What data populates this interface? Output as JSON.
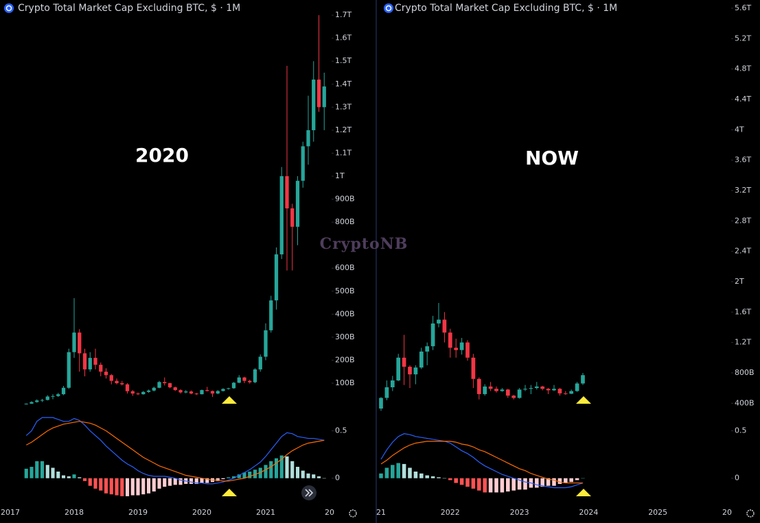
{
  "watermark": "CryptoNB",
  "chart_data": [
    {
      "type": "candlestick",
      "title": "Crypto Total Market Cap Excluding BTC, $ · 1M",
      "annotation": "2020",
      "up_color": "#26a69a",
      "down_color": "#f23645",
      "categories": [
        "2017",
        null,
        null,
        null,
        null,
        null,
        null,
        null,
        null,
        null,
        null,
        null,
        "2018",
        null,
        null,
        null,
        null,
        null,
        null,
        null,
        null,
        null,
        null,
        null,
        "2019",
        null,
        null,
        null,
        null,
        null,
        null,
        null,
        null,
        null,
        null,
        null,
        "2020",
        null,
        null,
        null,
        null,
        null,
        null,
        null,
        null,
        null,
        null,
        null,
        "2021",
        null,
        null,
        null,
        null,
        null,
        null,
        null,
        null,
        null,
        null,
        null,
        "20"
      ],
      "ohlc": [
        null,
        null,
        null,
        [
          8,
          12,
          7,
          11
        ],
        [
          11,
          22,
          10,
          18
        ],
        [
          18,
          30,
          15,
          25
        ],
        [
          25,
          32,
          18,
          27
        ],
        [
          27,
          48,
          25,
          42
        ],
        [
          42,
          52,
          30,
          44
        ],
        [
          44,
          58,
          40,
          52
        ],
        [
          52,
          88,
          48,
          80
        ],
        [
          80,
          250,
          75,
          235
        ],
        [
          235,
          470,
          210,
          320
        ],
        [
          320,
          335,
          150,
          230
        ],
        [
          230,
          250,
          130,
          160
        ],
        [
          160,
          235,
          150,
          210
        ],
        [
          210,
          250,
          160,
          180
        ],
        [
          180,
          190,
          130,
          150
        ],
        [
          150,
          165,
          120,
          135
        ],
        [
          135,
          140,
          95,
          110
        ],
        [
          110,
          120,
          95,
          100
        ],
        [
          100,
          110,
          90,
          95
        ],
        [
          95,
          100,
          55,
          65
        ],
        [
          65,
          70,
          45,
          55
        ],
        [
          55,
          60,
          48,
          52
        ],
        [
          52,
          66,
          50,
          62
        ],
        [
          62,
          72,
          58,
          68
        ],
        [
          68,
          85,
          64,
          80
        ],
        [
          80,
          110,
          78,
          105
        ],
        [
          105,
          125,
          90,
          100
        ],
        [
          100,
          102,
          78,
          82
        ],
        [
          82,
          85,
          66,
          70
        ],
        [
          70,
          74,
          55,
          60
        ],
        [
          60,
          70,
          56,
          64
        ],
        [
          64,
          68,
          52,
          55
        ],
        [
          55,
          58,
          48,
          52
        ],
        [
          52,
          72,
          51,
          70
        ],
        [
          70,
          84,
          64,
          66
        ],
        [
          66,
          68,
          40,
          55
        ],
        [
          55,
          70,
          52,
          66
        ],
        [
          66,
          78,
          64,
          75
        ],
        [
          75,
          80,
          72,
          78
        ],
        [
          78,
          105,
          76,
          102
        ],
        [
          102,
          135,
          100,
          125
        ],
        [
          125,
          128,
          100,
          110
        ],
        [
          110,
          115,
          98,
          104
        ],
        [
          104,
          165,
          100,
          160
        ],
        [
          160,
          225,
          150,
          215
        ],
        [
          215,
          360,
          200,
          330
        ],
        [
          330,
          480,
          320,
          460
        ],
        [
          460,
          690,
          420,
          660
        ],
        [
          660,
          1040,
          640,
          1000
        ],
        [
          1000,
          1480,
          590,
          860
        ],
        [
          860,
          880,
          590,
          780
        ],
        [
          780,
          1000,
          700,
          980
        ],
        [
          980,
          1150,
          950,
          1130
        ],
        [
          1130,
          1350,
          1050,
          1200
        ],
        [
          1200,
          1500,
          1150,
          1420
        ],
        [
          1420,
          1700,
          1280,
          1300
        ],
        [
          1300,
          1450,
          1200,
          1390
        ],
        null
      ],
      "ylim": [
        -40,
        1760
      ],
      "yticks": [
        {
          "value": 100,
          "label": "100B"
        },
        {
          "value": 200,
          "label": "200B"
        },
        {
          "value": 300,
          "label": "300B"
        },
        {
          "value": 400,
          "label": "400B"
        },
        {
          "value": 500,
          "label": "500B"
        },
        {
          "value": 600,
          "label": "600B"
        },
        {
          "value": 800,
          "label": "800B"
        },
        {
          "value": 900,
          "label": "900B"
        },
        {
          "value": 1000,
          "label": "1T"
        },
        {
          "value": 1100,
          "label": "1.1T"
        },
        {
          "value": 1200,
          "label": "1.2T"
        },
        {
          "value": 1300,
          "label": "1.3T"
        },
        {
          "value": 1400,
          "label": "1.4T"
        },
        {
          "value": 1500,
          "label": "1.5T"
        },
        {
          "value": 1600,
          "label": "1.6T"
        },
        {
          "value": 1700,
          "label": "1.7T"
        }
      ],
      "macd": {
        "ylim": [
          -0.27,
          0.67
        ],
        "yticks": [
          0,
          0.5
        ],
        "macd_color": "#2962ff",
        "signal_color": "#ff6d00",
        "histogram_colors": [
          "#26a69a",
          "#b2dfdb",
          "#ff5252",
          "#ffcdd2"
        ],
        "macd_line": [
          null,
          null,
          null,
          0.45,
          0.5,
          0.6,
          0.64,
          0.64,
          0.64,
          0.62,
          0.6,
          0.6,
          0.63,
          0.61,
          0.56,
          0.5,
          0.45,
          0.4,
          0.34,
          0.29,
          0.24,
          0.19,
          0.15,
          0.12,
          0.08,
          0.05,
          0.03,
          0.02,
          0.02,
          0.02,
          0.01,
          0,
          -0.02,
          -0.03,
          -0.04,
          -0.05,
          -0.05,
          -0.06,
          -0.06,
          -0.05,
          -0.04,
          -0.02,
          0,
          0.03,
          0.06,
          0.09,
          0.13,
          0.17,
          0.23,
          0.3,
          0.37,
          0.44,
          0.48,
          0.47,
          0.44,
          0.43,
          0.42,
          0.42,
          0.41,
          0.4,
          null
        ],
        "signal_line": [
          null,
          null,
          null,
          0.35,
          0.38,
          0.42,
          0.46,
          0.5,
          0.53,
          0.55,
          0.57,
          0.58,
          0.59,
          0.6,
          0.59,
          0.58,
          0.56,
          0.53,
          0.5,
          0.46,
          0.42,
          0.38,
          0.34,
          0.3,
          0.26,
          0.22,
          0.19,
          0.16,
          0.13,
          0.11,
          0.09,
          0.07,
          0.05,
          0.03,
          0.02,
          0.01,
          0,
          -0.01,
          -0.02,
          -0.02,
          -0.03,
          -0.03,
          -0.02,
          -0.01,
          0,
          0.02,
          0.04,
          0.06,
          0.09,
          0.12,
          0.16,
          0.2,
          0.25,
          0.29,
          0.32,
          0.35,
          0.37,
          0.38,
          0.39,
          0.4,
          null
        ],
        "histogram": [
          null,
          null,
          null,
          0.1,
          0.12,
          0.18,
          0.18,
          0.14,
          0.11,
          0.07,
          0.03,
          0.02,
          0.04,
          0.01,
          -0.03,
          -0.08,
          -0.11,
          -0.13,
          -0.16,
          -0.17,
          -0.18,
          -0.19,
          -0.19,
          -0.18,
          -0.18,
          -0.17,
          -0.16,
          -0.14,
          -0.11,
          -0.09,
          -0.08,
          -0.07,
          -0.07,
          -0.06,
          -0.06,
          -0.06,
          -0.05,
          -0.05,
          -0.04,
          -0.03,
          -0.01,
          0.01,
          0.02,
          0.04,
          0.06,
          0.07,
          0.09,
          0.11,
          0.14,
          0.18,
          0.21,
          0.24,
          0.23,
          0.18,
          0.12,
          0.08,
          0.05,
          0.04,
          0.02,
          0,
          null
        ]
      }
    },
    {
      "type": "candlestick",
      "title": "Crypto Total Market Cap Excluding BTC, $ · 1M",
      "annotation": "NOW",
      "up_color": "#26a69a",
      "down_color": "#f23645",
      "categories": [
        "21",
        null,
        null,
        null,
        null,
        null,
        null,
        null,
        null,
        null,
        null,
        null,
        "2022",
        null,
        null,
        null,
        null,
        null,
        null,
        null,
        null,
        null,
        null,
        null,
        "2023",
        null,
        null,
        null,
        null,
        null,
        null,
        null,
        null,
        null,
        null,
        null,
        "2024",
        null,
        null,
        null,
        null,
        null,
        null,
        null,
        null,
        null,
        null,
        null,
        "2025",
        null,
        null,
        null,
        null,
        null,
        null,
        null,
        null,
        null,
        null,
        null,
        "20"
      ],
      "ohlc": [
        [
          330,
          480,
          300,
          470
        ],
        [
          470,
          700,
          440,
          610
        ],
        [
          610,
          760,
          560,
          700
        ],
        [
          700,
          1050,
          690,
          1000
        ],
        [
          1000,
          1300,
          640,
          880
        ],
        [
          880,
          900,
          600,
          780
        ],
        [
          780,
          900,
          650,
          870
        ],
        [
          870,
          1130,
          850,
          1080
        ],
        [
          1080,
          1200,
          900,
          1150
        ],
        [
          1150,
          1550,
          1100,
          1450
        ],
        [
          1450,
          1720,
          1400,
          1500
        ],
        [
          1500,
          1600,
          1200,
          1330
        ],
        [
          1330,
          1380,
          1000,
          1130
        ],
        [
          1130,
          1250,
          1000,
          1100
        ],
        [
          1100,
          1260,
          1040,
          1200
        ],
        [
          1200,
          1230,
          960,
          1000
        ],
        [
          1000,
          1050,
          600,
          720
        ],
        [
          720,
          740,
          450,
          520
        ],
        [
          520,
          650,
          500,
          620
        ],
        [
          620,
          680,
          560,
          590
        ],
        [
          590,
          620,
          540,
          560
        ],
        [
          560,
          600,
          550,
          580
        ],
        [
          580,
          590,
          470,
          500
        ],
        [
          500,
          510,
          450,
          470
        ],
        [
          470,
          600,
          460,
          580
        ],
        [
          580,
          640,
          560,
          590
        ],
        [
          590,
          640,
          520,
          600
        ],
        [
          600,
          680,
          580,
          620
        ],
        [
          620,
          630,
          570,
          590
        ],
        [
          590,
          600,
          520,
          570
        ],
        [
          570,
          640,
          560,
          590
        ],
        [
          590,
          600,
          500,
          530
        ],
        [
          530,
          560,
          510,
          525
        ],
        [
          525,
          580,
          520,
          560
        ],
        [
          560,
          680,
          550,
          660
        ],
        [
          660,
          800,
          640,
          770
        ],
        null,
        null,
        null,
        null,
        null,
        null,
        null,
        null,
        null,
        null,
        null,
        null,
        null,
        null,
        null,
        null,
        null,
        null,
        null,
        null,
        null,
        null,
        null,
        null,
        null
      ],
      "ylim": [
        240,
        5690
      ],
      "yticks": [
        {
          "value": 400,
          "label": "400B"
        },
        {
          "value": 800,
          "label": "800B"
        },
        {
          "value": 1200,
          "label": "1.2T"
        },
        {
          "value": 1600,
          "label": "1.6T"
        },
        {
          "value": 2000,
          "label": "2T"
        },
        {
          "value": 2400,
          "label": "2.4T"
        },
        {
          "value": 2800,
          "label": "2.8T"
        },
        {
          "value": 3200,
          "label": "3.2T"
        },
        {
          "value": 3600,
          "label": "3.6T"
        },
        {
          "value": 4000,
          "label": "4T"
        },
        {
          "value": 4400,
          "label": "4.4T"
        },
        {
          "value": 4800,
          "label": "4.8T"
        },
        {
          "value": 5200,
          "label": "5.2T"
        },
        {
          "value": 5600,
          "label": "5.6T"
        }
      ],
      "macd": {
        "ylim": [
          -0.27,
          0.67
        ],
        "yticks": [
          0,
          0.5
        ],
        "macd_color": "#2962ff",
        "signal_color": "#ff6d00",
        "histogram_colors": [
          "#26a69a",
          "#b2dfdb",
          "#ff5252",
          "#ffcdd2"
        ],
        "macd_line": [
          0.2,
          0.3,
          0.38,
          0.44,
          0.47,
          0.46,
          0.44,
          0.43,
          0.42,
          0.41,
          0.4,
          0.39,
          0.37,
          0.33,
          0.29,
          0.26,
          0.22,
          0.17,
          0.13,
          0.1,
          0.07,
          0.04,
          0.02,
          0,
          -0.02,
          -0.04,
          -0.05,
          -0.07,
          -0.08,
          -0.09,
          -0.1,
          -0.1,
          -0.1,
          -0.09,
          -0.07,
          -0.05,
          null,
          null,
          null,
          null,
          null,
          null,
          null,
          null,
          null,
          null,
          null,
          null,
          null,
          null,
          null,
          null,
          null,
          null,
          null,
          null,
          null,
          null,
          null,
          null,
          null
        ],
        "signal_line": [
          0.15,
          0.19,
          0.24,
          0.28,
          0.32,
          0.35,
          0.37,
          0.38,
          0.39,
          0.39,
          0.39,
          0.39,
          0.39,
          0.38,
          0.36,
          0.35,
          0.33,
          0.3,
          0.28,
          0.25,
          0.22,
          0.19,
          0.16,
          0.13,
          0.1,
          0.08,
          0.05,
          0.03,
          0.01,
          -0.01,
          -0.02,
          -0.04,
          -0.05,
          -0.05,
          -0.05,
          -0.05,
          null,
          null,
          null,
          null,
          null,
          null,
          null,
          null,
          null,
          null,
          null,
          null,
          null,
          null,
          null,
          null,
          null,
          null,
          null,
          null,
          null,
          null,
          null,
          null,
          null
        ],
        "histogram": [
          0.05,
          0.11,
          0.14,
          0.16,
          0.15,
          0.11,
          0.07,
          0.05,
          0.03,
          0.02,
          0.01,
          0,
          -0.02,
          -0.05,
          -0.07,
          -0.09,
          -0.11,
          -0.13,
          -0.15,
          -0.15,
          -0.15,
          -0.15,
          -0.14,
          -0.13,
          -0.12,
          -0.12,
          -0.1,
          -0.1,
          -0.09,
          -0.08,
          -0.08,
          -0.06,
          -0.05,
          -0.04,
          -0.02,
          0,
          null,
          null,
          null,
          null,
          null,
          null,
          null,
          null,
          null,
          null,
          null,
          null,
          null,
          null,
          null,
          null,
          null,
          null,
          null,
          null,
          null,
          null,
          null,
          null,
          null
        ]
      }
    }
  ]
}
